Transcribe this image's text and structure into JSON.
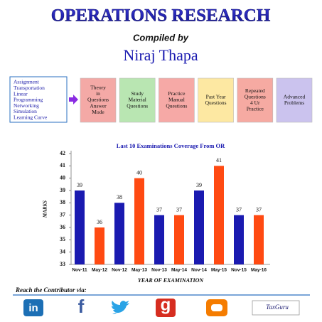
{
  "header": {
    "title": "OPERATIONS RESEARCH",
    "compiled_by": "Compiled by",
    "author": "Niraj Thapa"
  },
  "topics": [
    "Assignment",
    "Transportation",
    "Linear",
    "Programming",
    "Networking",
    "Simulation",
    "Learning Curve"
  ],
  "steps": [
    [
      "Theory",
      "in",
      "Questions",
      "Answer",
      "Mode"
    ],
    [
      "Study",
      "Material",
      "Questions"
    ],
    [
      "Practice",
      "Manual",
      "Questions"
    ],
    [
      "Past Year",
      "Questions"
    ],
    [
      "Repeated",
      "Questions",
      "4 Ur",
      "Practice"
    ],
    [
      "Advanced",
      "Problems"
    ]
  ],
  "chart_data": {
    "type": "bar",
    "title": "Last 10 Examinations Coverage From OR",
    "y_label": "MARKS",
    "x_label": "YEAR OF EXAMINATION",
    "categories": [
      "Nov-11",
      "May-12",
      "Nov-12",
      "May-13",
      "Nov-13",
      "May-14",
      "Nov-14",
      "May-15",
      "Nov-15",
      "May-16"
    ],
    "values": [
      39,
      36,
      38,
      40,
      37,
      37,
      39,
      41,
      37,
      37
    ],
    "colors": [
      "#1a1ab0",
      "#ff4a12",
      "#1a1ab0",
      "#ff4a12",
      "#1a1ab0",
      "#ff4a12",
      "#1a1ab0",
      "#ff4a12",
      "#1a1ab0",
      "#ff4a12"
    ],
    "ylim": [
      33,
      42
    ],
    "yticks": [
      33,
      34,
      35,
      36,
      37,
      38,
      39,
      40,
      41,
      42
    ],
    "grid": false
  },
  "footer": {
    "text": "Reach the Contributor via:",
    "icons": [
      "in",
      "f",
      "g",
      "TaxGuru"
    ]
  }
}
